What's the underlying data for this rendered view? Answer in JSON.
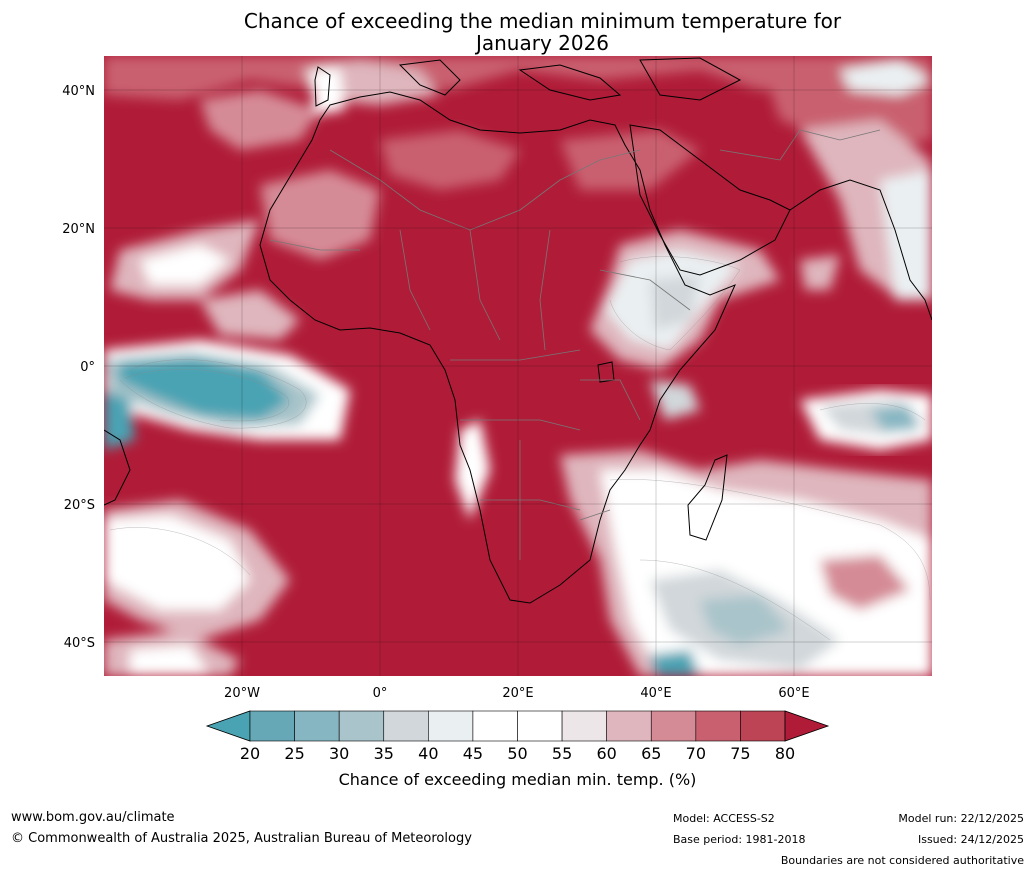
{
  "title": {
    "line1": "Chance of exceeding the median minimum temperature for",
    "line2": "January 2026"
  },
  "map": {
    "lat_ticks": [
      "40°N",
      "20°N",
      "0°",
      "20°S",
      "40°S"
    ],
    "lon_ticks": [
      "20°W",
      "0°",
      "20°E",
      "40°E",
      "60°E"
    ]
  },
  "colorbar": {
    "ticks": [
      "20",
      "25",
      "30",
      "35",
      "40",
      "45",
      "50",
      "55",
      "60",
      "65",
      "70",
      "75",
      "80"
    ],
    "colors": [
      "#4aa3b3",
      "#66a8b6",
      "#86b6c2",
      "#a9c4ca",
      "#d1d7da",
      "#eaf0f2",
      "#ffffff",
      "#ffffff",
      "#ece6e8",
      "#dfb6bd",
      "#d58b96",
      "#c9606f",
      "#bd4455",
      "#b01c38"
    ],
    "label": "Chance of exceeding median min. temp. (%)"
  },
  "footer": {
    "url": "www.bom.gov.au/climate",
    "copyright": "© Commonwealth of Australia 2025, Australian Bureau of Meteorology",
    "model": "Model: ACCESS-S2",
    "base_period": "Base period: 1981-2018",
    "model_run": "Model run: 22/12/2025",
    "issued": "Issued: 24/12/2025",
    "disclaimer": "Boundaries are not considered authoritative"
  }
}
